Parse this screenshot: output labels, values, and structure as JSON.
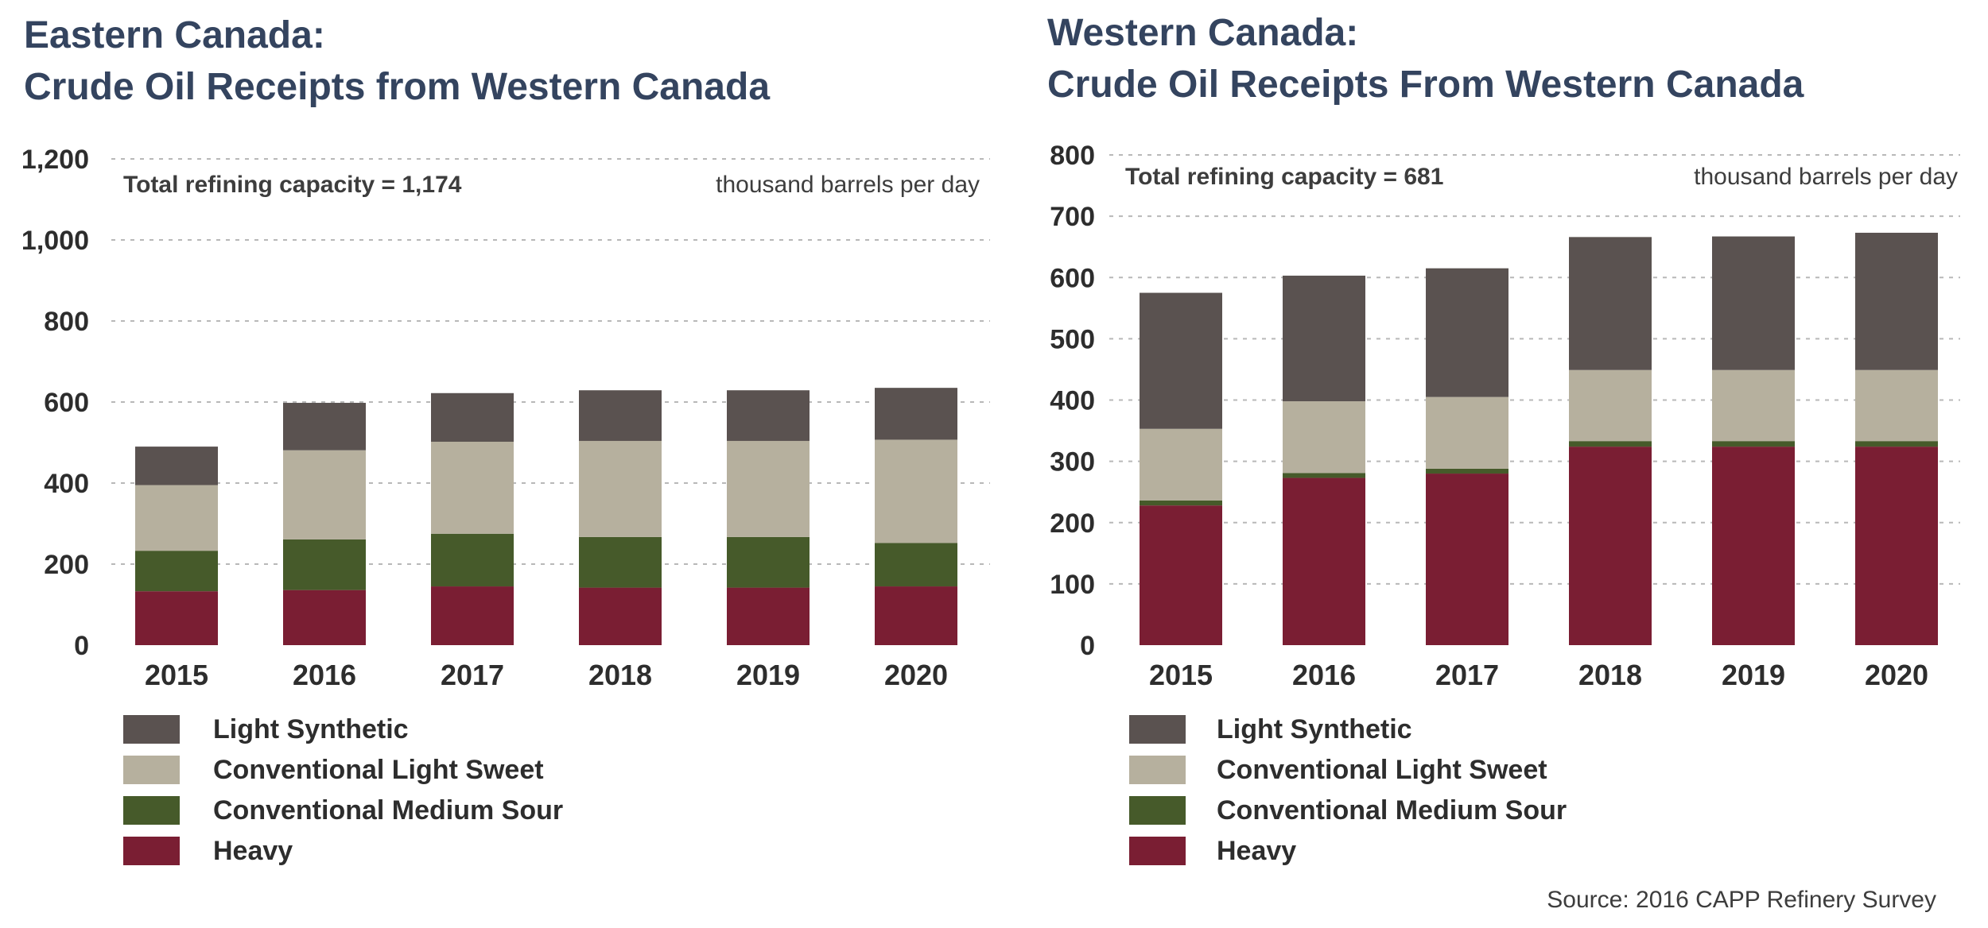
{
  "colors": {
    "title": "#34445f",
    "light_synthetic": "#5a5250",
    "conventional_light_sweet": "#b6b09e",
    "conventional_medium_sour": "#465a2a",
    "heavy": "#7a1e33",
    "grid": "#b8b8b8"
  },
  "source": "Source: 2016 CAPP Refinery Survey",
  "chart_data": [
    {
      "type": "bar",
      "stacked": true,
      "title_line1": "Eastern Canada:",
      "title_line2": "Crude Oil Receipts from Western Canada",
      "annotation": "Total refining capacity = 1,174",
      "units": "thousand barrels per day",
      "categories": [
        "2015",
        "2016",
        "2017",
        "2018",
        "2019",
        "2020"
      ],
      "ylim": [
        0,
        1200
      ],
      "yticks": [
        0,
        200,
        400,
        600,
        800,
        1000,
        1200
      ],
      "ytick_labels": [
        "0",
        "200",
        "400",
        "600",
        "800",
        "1,000",
        "1,200"
      ],
      "grid": true,
      "legend_position": "bottom-left",
      "series": [
        {
          "name": "Heavy",
          "color": "#7a1e33",
          "values": [
            133,
            136,
            145,
            142,
            142,
            145
          ]
        },
        {
          "name": "Conventional Medium Sour",
          "color": "#465a2a",
          "values": [
            100,
            125,
            130,
            125,
            125,
            107
          ]
        },
        {
          "name": "Conventional Light Sweet",
          "color": "#b6b09e",
          "values": [
            162,
            220,
            227,
            237,
            237,
            255
          ]
        },
        {
          "name": "Light Synthetic",
          "color": "#5a5250",
          "values": [
            95,
            117,
            120,
            125,
            125,
            128
          ]
        }
      ]
    },
    {
      "type": "bar",
      "stacked": true,
      "title_line1": "Western Canada:",
      "title_line2": "Crude Oil Receipts From Western Canada",
      "annotation": "Total refining capacity = 681",
      "units": "thousand barrels per day",
      "categories": [
        "2015",
        "2016",
        "2017",
        "2018",
        "2019",
        "2020"
      ],
      "ylim": [
        0,
        800
      ],
      "yticks": [
        0,
        100,
        200,
        300,
        400,
        500,
        600,
        700,
        800
      ],
      "ytick_labels": [
        "0",
        "100",
        "200",
        "300",
        "400",
        "500",
        "600",
        "700",
        "800"
      ],
      "grid": true,
      "legend_position": "bottom-left",
      "series": [
        {
          "name": "Heavy",
          "color": "#7a1e33",
          "values": [
            228,
            273,
            280,
            324,
            324,
            324
          ]
        },
        {
          "name": "Conventional Medium Sour",
          "color": "#465a2a",
          "values": [
            8,
            8,
            8,
            9,
            9,
            9
          ]
        },
        {
          "name": "Conventional Light Sweet",
          "color": "#b6b09e",
          "values": [
            117,
            117,
            117,
            116,
            116,
            116
          ]
        },
        {
          "name": "Light Synthetic",
          "color": "#5a5250",
          "values": [
            222,
            205,
            210,
            217,
            218,
            224
          ]
        }
      ]
    }
  ],
  "legend_order": [
    "Light Synthetic",
    "Conventional Light Sweet",
    "Conventional Medium Sour",
    "Heavy"
  ]
}
